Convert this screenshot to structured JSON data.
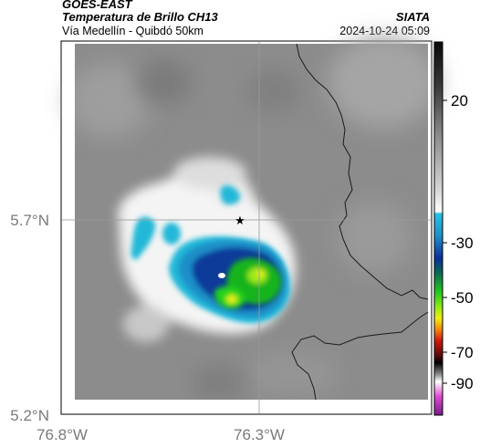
{
  "header": {
    "satellite": "GOES-EAST",
    "product": "Temperatura de Brillo CH13",
    "region": "Vía Medellín - Quibdó 50km",
    "agency": "SIATA",
    "timestamp": "2024-10-24 05:09"
  },
  "map": {
    "x_ticks": [
      "76.8°W",
      "76.3°W"
    ],
    "y_ticks": [
      "5.7°N",
      "5.2°N"
    ],
    "marker_symbol": "★"
  },
  "colorbar": {
    "ticks": [
      "20",
      "-30",
      "-50",
      "-70",
      "-90"
    ]
  },
  "colors": {
    "cold_cyan": "#22b8d8",
    "deep_blue": "#0a3a9a",
    "core_green": "#22d21e",
    "core_yellow": "#e8ee1a"
  }
}
